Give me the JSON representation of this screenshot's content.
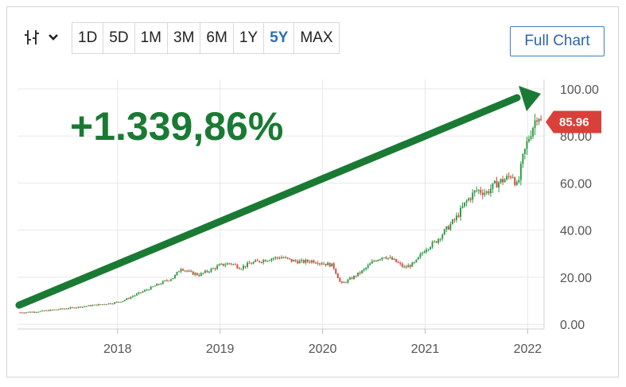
{
  "toolbar": {
    "chart_type_icon": "candlestick-icon",
    "ranges": [
      "1D",
      "5D",
      "1M",
      "3M",
      "6M",
      "1Y",
      "5Y",
      "MAX"
    ],
    "active_range": "5Y",
    "full_chart_label": "Full Chart"
  },
  "colors": {
    "up": "#2e9e47",
    "down": "#d94a3d",
    "arrow": "#1a7a34",
    "price_tag": "#d9403a",
    "grid": "#e8e8e8",
    "accent": "#2b6fb5"
  },
  "annotation": {
    "gain_text": "+1.339,86%"
  },
  "chart_data": {
    "type": "candlestick",
    "y_ticks": [
      0,
      20,
      40,
      60,
      80,
      100
    ],
    "y_tick_labels": [
      "0.00",
      "20.00",
      "40.00",
      "60.00",
      "80.00",
      "100.00"
    ],
    "ylim": [
      -2,
      104
    ],
    "x_ticks": [
      2018,
      2019,
      2020,
      2021,
      2022
    ],
    "x_tick_labels": [
      "2018",
      "2019",
      "2020",
      "2021",
      "2022"
    ],
    "xlim": [
      2017.04,
      2022.16
    ],
    "grid": true,
    "last_price": 85.96,
    "last_price_label": "85.96",
    "x": [
      2017.05,
      2017.15,
      2017.25,
      2017.35,
      2017.45,
      2017.55,
      2017.65,
      2017.75,
      2017.85,
      2017.95,
      2018.05,
      2018.15,
      2018.25,
      2018.35,
      2018.45,
      2018.55,
      2018.62,
      2018.7,
      2018.8,
      2018.9,
      2019.0,
      2019.1,
      2019.2,
      2019.3,
      2019.4,
      2019.5,
      2019.6,
      2019.7,
      2019.8,
      2019.9,
      2020.0,
      2020.1,
      2020.18,
      2020.22,
      2020.3,
      2020.4,
      2020.5,
      2020.6,
      2020.7,
      2020.8,
      2020.9,
      2021.0,
      2021.1,
      2021.2,
      2021.3,
      2021.4,
      2021.5,
      2021.6,
      2021.7,
      2021.8,
      2021.85,
      2021.9,
      2021.95,
      2022.0,
      2022.05,
      2022.1,
      2022.13
    ],
    "close": [
      5,
      5.2,
      5.5,
      6,
      6.5,
      7,
      7.5,
      8,
      8.5,
      9,
      10,
      12,
      14,
      16,
      18,
      20,
      24,
      22,
      21,
      23,
      25,
      26,
      24,
      26,
      27,
      28,
      28.5,
      27,
      26.5,
      27,
      26,
      25,
      17,
      18,
      20,
      23,
      27,
      29,
      27,
      24,
      26,
      32,
      35,
      40,
      45,
      52,
      57,
      56,
      60,
      62,
      64,
      58,
      70,
      78,
      84,
      90,
      86
    ]
  }
}
